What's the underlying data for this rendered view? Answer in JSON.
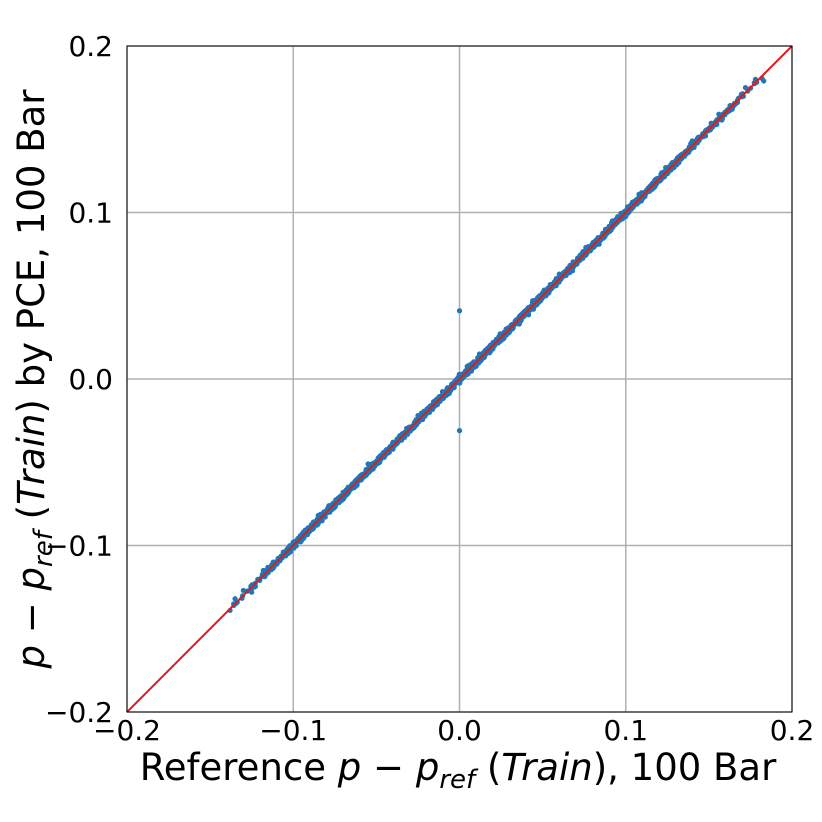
{
  "chart_data": {
    "type": "scatter",
    "title": "",
    "xlabel": {
      "prefix": "Reference ",
      "math_p": "p",
      "minus": " − ",
      "math_p2": "p",
      "subscript": "ref",
      "open": " (",
      "italic": "Train",
      "close": "), 100 Bar"
    },
    "ylabel": {
      "math_p": "p",
      "minus": " − ",
      "math_p2": "p",
      "subscript": "ref",
      "open": " (",
      "italic": "Train",
      "close": ") by PCE, 100 Bar"
    },
    "xlim": [
      -0.2,
      0.2
    ],
    "ylim": [
      -0.2,
      0.2
    ],
    "xticks": [
      -0.2,
      -0.1,
      0.0,
      0.1,
      0.2
    ],
    "yticks": [
      -0.2,
      -0.1,
      0.0,
      0.1,
      0.2
    ],
    "xtick_labels": [
      "−0.2",
      "−0.1",
      "0.0",
      "0.1",
      "0.2"
    ],
    "ytick_labels": [
      "−0.2",
      "−0.1",
      "0.0",
      "0.1",
      "0.2"
    ],
    "grid": true,
    "series": [
      {
        "color": "#1f77b4",
        "x_range": [
          -0.138,
          0.183
        ],
        "y_relation": "y ≈ x",
        "points": [
          [
            -0.138,
            -0.139
          ],
          [
            -0.135,
            -0.132
          ],
          [
            -0.13,
            -0.127
          ],
          [
            -0.125,
            -0.128
          ],
          [
            -0.118,
            -0.115
          ],
          [
            -0.112,
            -0.11
          ],
          [
            -0.106,
            -0.104
          ],
          [
            -0.1,
            -0.098
          ],
          [
            -0.092,
            -0.093
          ],
          [
            -0.085,
            -0.082
          ],
          [
            -0.078,
            -0.08
          ],
          [
            -0.07,
            -0.068
          ],
          [
            -0.062,
            -0.063
          ],
          [
            -0.055,
            -0.051
          ],
          [
            -0.048,
            -0.05
          ],
          [
            -0.04,
            -0.038
          ],
          [
            -0.033,
            -0.035
          ],
          [
            -0.025,
            -0.022
          ],
          [
            -0.018,
            -0.02
          ],
          [
            -0.01,
            -0.008
          ],
          [
            0.0,
            0.041
          ],
          [
            0.0,
            -0.031
          ],
          [
            0.005,
            0.004
          ],
          [
            0.012,
            0.015
          ],
          [
            0.02,
            0.018
          ],
          [
            0.028,
            0.03
          ],
          [
            0.036,
            0.033
          ],
          [
            0.044,
            0.047
          ],
          [
            0.052,
            0.05
          ],
          [
            0.06,
            0.063
          ],
          [
            0.068,
            0.065
          ],
          [
            0.076,
            0.079
          ],
          [
            0.084,
            0.081
          ],
          [
            0.092,
            0.095
          ],
          [
            0.1,
            0.098
          ],
          [
            0.108,
            0.111
          ],
          [
            0.116,
            0.114
          ],
          [
            0.124,
            0.127
          ],
          [
            0.132,
            0.13
          ],
          [
            0.14,
            0.143
          ],
          [
            0.148,
            0.146
          ],
          [
            0.156,
            0.159
          ],
          [
            0.164,
            0.162
          ],
          [
            0.172,
            0.175
          ],
          [
            0.178,
            0.18
          ],
          [
            0.183,
            0.179
          ]
        ]
      }
    ],
    "reference_line": {
      "type": "identity",
      "color": "#e31a1c"
    }
  }
}
